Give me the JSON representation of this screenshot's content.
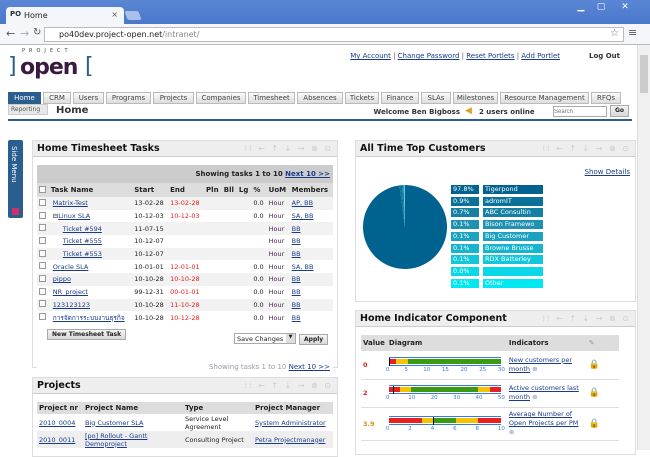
{
  "browser": {
    "tab_title": "Home",
    "url_host": "po40dev.project-open.net",
    "url_path": "/intranet/"
  },
  "logo": {
    "small": "PROJECT",
    "big": "open"
  },
  "top_links": [
    "My Account",
    "Change Password",
    "Reset Portlets",
    "Add Portlet"
  ],
  "logout": "Log Out",
  "nav_tabs": [
    "Home",
    "CRM",
    "Users",
    "Programs",
    "Projects",
    "Companies",
    "Timesheet",
    "Absences",
    "Tickets",
    "Finance",
    "SLAs",
    "Milestones",
    "Resource Management",
    "RFQs"
  ],
  "subnav": {
    "reporting": "Reporting",
    "page_title": "Home",
    "welcome": "Welcome Ben Bigboss",
    "online": "2 users online",
    "search_placeholder": "Search",
    "go": "Go"
  },
  "side_menu": "Side Menu",
  "timesheet": {
    "title": "Home Timesheet Tasks",
    "showing": "Showing tasks 1 to 10",
    "next": "Next 10 >>",
    "columns": [
      "Task Name",
      "Start",
      "End",
      "Pln",
      "Bll",
      "Lg",
      "%",
      "UoM",
      "Members"
    ],
    "rows": [
      {
        "name": "Matrix-Test",
        "start": "13-02-28",
        "end": "13-02-28",
        "pct": "0.0",
        "uom": "Hour",
        "members": "AP, BB",
        "indent": 0
      },
      {
        "name": "Linux SLA",
        "start": "10-12-03",
        "end": "10-12-03",
        "pct": "0.0",
        "uom": "Hour",
        "members": "SA, BB",
        "indent": 0,
        "collapse": "⊟"
      },
      {
        "name": "Ticket #594",
        "start": "11-07-15",
        "end": "",
        "pct": "",
        "uom": "Hour",
        "members": "BB",
        "indent": 1
      },
      {
        "name": "Ticket #555",
        "start": "10-12-07",
        "end": "",
        "pct": "",
        "uom": "Hour",
        "members": "BB",
        "indent": 1
      },
      {
        "name": "Ticket #553",
        "start": "10-12-07",
        "end": "",
        "pct": "",
        "uom": "Hour",
        "members": "BB",
        "indent": 1
      },
      {
        "name": "Oracle SLA",
        "start": "10-01-01",
        "end": "12-01-01",
        "pct": "0.0",
        "uom": "Hour",
        "members": "SA, BB",
        "indent": 0
      },
      {
        "name": "pippo",
        "start": "10-10-28",
        "end": "10-10-28",
        "pct": "0.0",
        "uom": "Hour",
        "members": "BB",
        "indent": 0
      },
      {
        "name": "NR_project",
        "start": "99-12-31",
        "end": "00-01-01",
        "pct": "0.0",
        "uom": "Hour",
        "members": "BB",
        "indent": 0
      },
      {
        "name": "123123123",
        "start": "10-10-28",
        "end": "11-10-28",
        "pct": "0.0",
        "uom": "Hour",
        "members": "BB",
        "indent": 0
      },
      {
        "name": "การจัดการระบบงานธุรกิจ",
        "start": "10-10-28",
        "end": "10-12-28",
        "pct": "0.0",
        "uom": "Hour",
        "members": "BB",
        "indent": 0
      }
    ],
    "new_task": "New Timesheet Task",
    "action_select": "Save Changes",
    "apply": "Apply"
  },
  "projects": {
    "title": "Projects",
    "columns": [
      "Project nr",
      "Project Name",
      "Type",
      "Project Manager"
    ],
    "rows": [
      {
        "nr": "2010_0004",
        "name": "Big Customer SLA",
        "type": "Service Level Agreement",
        "pm": "System Administrator"
      },
      {
        "nr": "2010_0011",
        "name": "[po] Rollout - Gantt Demoproject",
        "type": "Consulting Project",
        "pm": "Petra Projectmanager"
      }
    ]
  },
  "customers": {
    "title": "All Time Top Customers",
    "show_details": "Show Details",
    "chart_data": {
      "type": "pie",
      "slices": [
        {
          "label": "Tigerpond",
          "pct": "97.8%",
          "value": 97.8,
          "color": "#00638f"
        },
        {
          "label": "adromIT",
          "pct": "0.9%",
          "value": 0.9,
          "color": "#0a7198"
        },
        {
          "label": "ABC Consultin",
          "pct": "0.7%",
          "value": 0.7,
          "color": "#1480a4"
        },
        {
          "label": "Bison Framewo",
          "pct": "0.1%",
          "value": 0.1,
          "color": "#1f91b2"
        },
        {
          "label": "Big Customer",
          "pct": "0.1%",
          "value": 0.1,
          "color": "#1ba2c0"
        },
        {
          "label": "Browne Brusse",
          "pct": "0.1%",
          "value": 0.1,
          "color": "#17b4ce"
        },
        {
          "label": "RDX Batterley",
          "pct": "0.1%",
          "value": 0.1,
          "color": "#12c6dc"
        },
        {
          "label": "",
          "pct": "0.0%",
          "value": 0.0,
          "color": "#0ad7e8"
        },
        {
          "label": "Other",
          "pct": "0.1%",
          "value": 0.1,
          "color": "#00e8f2"
        }
      ]
    }
  },
  "indicators": {
    "title": "Home Indicator Component",
    "columns": [
      "Value",
      "Diagram",
      "Indicators"
    ],
    "rows": [
      {
        "value": "0",
        "value_color": "#e02020",
        "name": "New customers per month",
        "max": 30,
        "ticks": [
          0,
          5,
          10,
          15,
          20,
          25,
          30
        ],
        "bands": [
          [
            0,
            2,
            "#e82020"
          ],
          [
            2,
            5,
            "#f5c400"
          ],
          [
            5,
            30,
            "#3a9a10"
          ]
        ],
        "marker": 0
      },
      {
        "value": "2",
        "value_color": "#e02020",
        "name": "Active customers last month",
        "max": 50,
        "ticks": [
          0,
          10,
          20,
          30,
          40,
          50
        ],
        "bands": [
          [
            0,
            5,
            "#e82020"
          ],
          [
            5,
            10,
            "#f5c400"
          ],
          [
            10,
            40,
            "#3a9a10"
          ],
          [
            40,
            45,
            "#f5c400"
          ],
          [
            45,
            50,
            "#e82020"
          ]
        ],
        "marker": 2
      },
      {
        "value": "3.9",
        "value_color": "#e08a20",
        "name": "Average Number of Open Projects per PM",
        "max": 10,
        "ticks": [
          0,
          2,
          4,
          6,
          8,
          10
        ],
        "bands": [
          [
            0,
            3,
            "#e82020"
          ],
          [
            3,
            3.9,
            "#f5c400"
          ],
          [
            3.9,
            6,
            "#3a9a10"
          ],
          [
            6,
            8,
            "#f5c400"
          ],
          [
            8,
            10,
            "#e82020"
          ]
        ],
        "marker": 3.9
      }
    ]
  }
}
